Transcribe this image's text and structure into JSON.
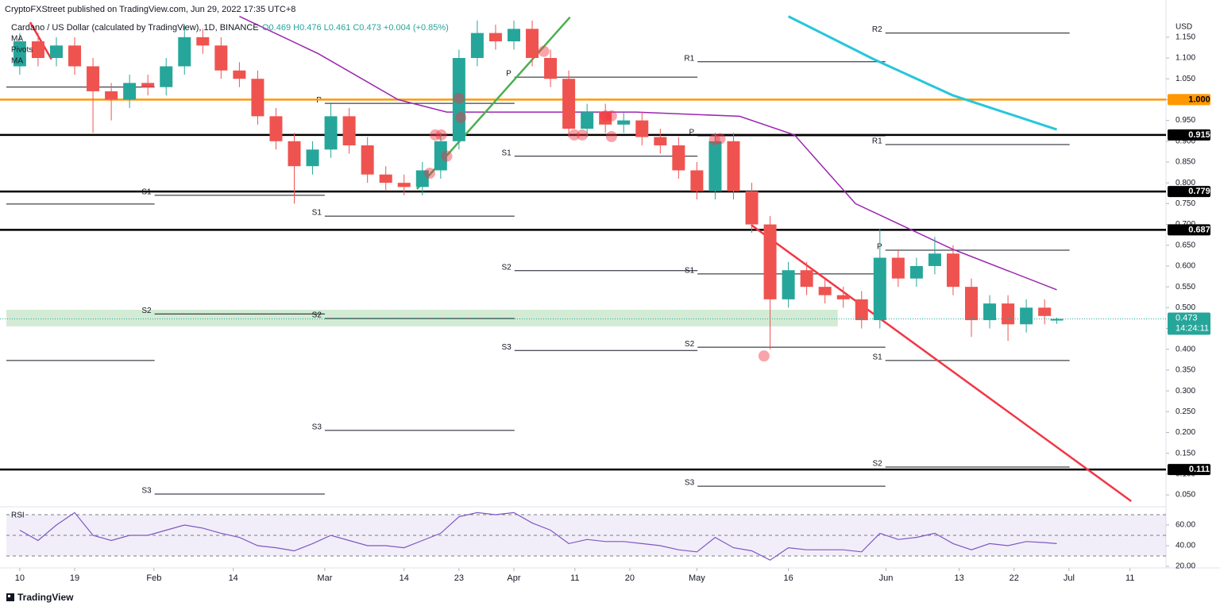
{
  "header": {
    "publisher": "CryptoFXStreet published on TradingView.com, Jun 29, 2022 17:35 UTC+8",
    "symbol": "Cardano / US Dollar (calculated by TradingView), 1D, BINANCE",
    "ohlc": "O0.469 H0.476 L0.461 C0.473 +0.004 (+0.85%)",
    "legend_pivots": "Pivots",
    "currency": "USD",
    "footer": "TradingView"
  },
  "chart_data": [
    {
      "type": "candlestick",
      "up_color": "#26a69a",
      "down_color": "#ef5350",
      "x": [
        0,
        3,
        6,
        9,
        12,
        15,
        18,
        21,
        24,
        27,
        30,
        33,
        36,
        39,
        42,
        45,
        48,
        51,
        54,
        57,
        60,
        63,
        66,
        69,
        72,
        75,
        78,
        81,
        84,
        87,
        90,
        93,
        96,
        99,
        102,
        105,
        108,
        111,
        114,
        117,
        120,
        123,
        126,
        129,
        132,
        135,
        138,
        141,
        144,
        147,
        150,
        153,
        156,
        159,
        162,
        165,
        168,
        170
      ],
      "open": [
        1.08,
        1.14,
        1.1,
        1.13,
        1.08,
        1.02,
        1.0,
        1.04,
        1.03,
        1.08,
        1.15,
        1.13,
        1.07,
        1.05,
        0.96,
        0.9,
        0.84,
        0.88,
        0.96,
        0.89,
        0.82,
        0.8,
        0.79,
        0.83,
        0.9,
        1.1,
        1.16,
        1.14,
        1.17,
        1.1,
        1.05,
        0.93,
        0.97,
        0.94,
        0.95,
        0.91,
        0.89,
        0.83,
        0.78,
        0.9,
        0.78,
        0.7,
        0.52,
        0.59,
        0.55,
        0.53,
        0.52,
        0.47,
        0.62,
        0.57,
        0.6,
        0.63,
        0.55,
        0.47,
        0.51,
        0.46,
        0.5,
        0.469
      ],
      "high": [
        1.16,
        1.16,
        1.15,
        1.15,
        1.1,
        1.04,
        1.06,
        1.06,
        1.1,
        1.18,
        1.17,
        1.15,
        1.09,
        1.07,
        0.98,
        0.92,
        0.9,
        0.99,
        0.98,
        0.91,
        0.84,
        0.82,
        0.85,
        0.92,
        1.12,
        1.19,
        1.18,
        1.19,
        1.19,
        1.12,
        1.07,
        0.99,
        0.99,
        0.97,
        0.97,
        0.93,
        0.91,
        0.85,
        0.92,
        0.92,
        0.8,
        0.72,
        0.61,
        0.61,
        0.57,
        0.55,
        0.54,
        0.69,
        0.64,
        0.62,
        0.67,
        0.65,
        0.57,
        0.53,
        0.53,
        0.52,
        0.52,
        0.476
      ],
      "low": [
        1.06,
        1.08,
        1.08,
        1.06,
        0.92,
        0.95,
        0.98,
        1.01,
        1.01,
        1.06,
        1.11,
        1.05,
        1.03,
        0.94,
        0.88,
        0.75,
        0.82,
        0.86,
        0.87,
        0.8,
        0.78,
        0.77,
        0.77,
        0.81,
        0.88,
        1.08,
        1.12,
        1.12,
        1.08,
        1.03,
        0.91,
        0.91,
        0.92,
        0.92,
        0.89,
        0.87,
        0.81,
        0.76,
        0.76,
        0.76,
        0.68,
        0.4,
        0.5,
        0.53,
        0.51,
        0.5,
        0.45,
        0.45,
        0.55,
        0.55,
        0.58,
        0.53,
        0.43,
        0.45,
        0.42,
        0.44,
        0.46,
        0.461
      ],
      "close": [
        1.14,
        1.1,
        1.13,
        1.08,
        1.02,
        1.0,
        1.04,
        1.03,
        1.08,
        1.15,
        1.13,
        1.07,
        1.05,
        0.96,
        0.9,
        0.84,
        0.88,
        0.96,
        0.89,
        0.82,
        0.8,
        0.79,
        0.83,
        0.9,
        1.1,
        1.16,
        1.14,
        1.17,
        1.1,
        1.05,
        0.93,
        0.97,
        0.94,
        0.95,
        0.91,
        0.89,
        0.83,
        0.78,
        0.9,
        0.78,
        0.7,
        0.52,
        0.59,
        0.55,
        0.53,
        0.52,
        0.47,
        0.62,
        0.57,
        0.6,
        0.63,
        0.55,
        0.47,
        0.51,
        0.46,
        0.5,
        0.48,
        0.473
      ],
      "series": [
        {
          "name": "MA",
          "color": "#9c27b0",
          "x": [
            36,
            49,
            62,
            70,
            82,
            101,
            118,
            127,
            137,
            153,
            170
          ],
          "values": [
            1.2,
            1.11,
            1.0,
            0.97,
            0.97,
            0.97,
            0.96,
            0.915,
            0.75,
            0.64,
            0.543
          ]
        },
        {
          "name": "MA",
          "color": "#26c6da",
          "x": [
            126,
            140,
            153,
            170
          ],
          "values": [
            1.2,
            1.097,
            1.01,
            0.928
          ]
        }
      ],
      "xlim": [
        -2.2,
        187.9
      ],
      "xticks": [
        {
          "value": 0,
          "label": "10"
        },
        {
          "value": 9,
          "label": "19"
        },
        {
          "value": 22,
          "label": "Feb"
        },
        {
          "value": 35,
          "label": "14"
        },
        {
          "value": 50,
          "label": "Mar"
        },
        {
          "value": 63,
          "label": "14"
        },
        {
          "value": 72,
          "label": "23"
        },
        {
          "value": 81,
          "label": "Apr"
        },
        {
          "value": 91,
          "label": "11"
        },
        {
          "value": 100,
          "label": "20"
        },
        {
          "value": 111,
          "label": "May"
        },
        {
          "value": 126,
          "label": "16"
        },
        {
          "value": 142,
          "label": "Jun"
        },
        {
          "value": 154,
          "label": "13"
        },
        {
          "value": 163,
          "label": "22"
        },
        {
          "value": 172,
          "label": "Jul"
        },
        {
          "value": 182,
          "label": "11"
        }
      ],
      "ylim": [
        0.033,
        1.205
      ],
      "yticks": [
        {
          "value": 1.15,
          "label": "1.150"
        },
        {
          "value": 1.1,
          "label": "1.100"
        },
        {
          "value": 1.05,
          "label": "1.050"
        },
        {
          "value": 1.0,
          "label": "1.000"
        },
        {
          "value": 0.95,
          "label": "0.950"
        },
        {
          "value": 0.9,
          "label": "0.900"
        },
        {
          "value": 0.85,
          "label": "0.850"
        },
        {
          "value": 0.8,
          "label": "0.800"
        },
        {
          "value": 0.75,
          "label": "0.750"
        },
        {
          "value": 0.7,
          "label": "0.700"
        },
        {
          "value": 0.65,
          "label": "0.650"
        },
        {
          "value": 0.6,
          "label": "0.600"
        },
        {
          "value": 0.55,
          "label": "0.550"
        },
        {
          "value": 0.5,
          "label": "0.500"
        },
        {
          "value": 0.45,
          "label": "0.450"
        },
        {
          "value": 0.4,
          "label": "0.400"
        },
        {
          "value": 0.35,
          "label": "0.350"
        },
        {
          "value": 0.3,
          "label": "0.300"
        },
        {
          "value": 0.25,
          "label": "0.250"
        },
        {
          "value": 0.2,
          "label": "0.200"
        },
        {
          "value": 0.15,
          "label": "0.150"
        },
        {
          "value": 0.1,
          "label": "0.100"
        },
        {
          "value": 0.05,
          "label": "0.050"
        }
      ],
      "levels": [
        {
          "value": 1.0,
          "label": "1.000",
          "color": "#ff9800"
        },
        {
          "value": 0.915,
          "label": "0.915",
          "color": "#000000"
        },
        {
          "value": 0.779,
          "label": "0.779",
          "color": "#000000"
        },
        {
          "value": 0.687,
          "label": "0.687",
          "color": "#000000"
        },
        {
          "value": 0.111,
          "label": "0.111",
          "color": "#000000"
        }
      ],
      "pivots": [
        {
          "label": null,
          "value": 1.03,
          "from": -2.2,
          "to": 22.1
        },
        {
          "label": null,
          "value": 0.749,
          "from": -2.2,
          "to": 22.1
        },
        {
          "label": null,
          "value": 0.373,
          "from": -2.2,
          "to": 22.1
        },
        {
          "label": "S1",
          "value": 0.77,
          "from": 22.1,
          "to": 50
        },
        {
          "label": "S2",
          "value": 0.485,
          "from": 22.1,
          "to": 50
        },
        {
          "label": "S3",
          "value": 0.052,
          "from": 22.1,
          "to": 50
        },
        {
          "label": "P",
          "value": 0.991,
          "from": 50,
          "to": 81.1
        },
        {
          "label": "S1",
          "value": 0.72,
          "from": 50,
          "to": 81.1
        },
        {
          "label": "S2",
          "value": 0.474,
          "from": 50,
          "to": 81.1
        },
        {
          "label": "S3",
          "value": 0.205,
          "from": 50,
          "to": 81.1
        },
        {
          "label": "P",
          "value": 1.054,
          "from": 81.1,
          "to": 111.1
        },
        {
          "label": "S1",
          "value": 0.864,
          "from": 81.1,
          "to": 111.1
        },
        {
          "label": "S2",
          "value": 0.589,
          "from": 81.1,
          "to": 111.1
        },
        {
          "label": "S3",
          "value": 0.397,
          "from": 81.1,
          "to": 111.1
        },
        {
          "label": "R1",
          "value": 1.091,
          "from": 111.1,
          "to": 141.9
        },
        {
          "label": "P",
          "value": 0.913,
          "from": 111.1,
          "to": 141.9
        },
        {
          "label": "S1",
          "value": 0.581,
          "from": 111.1,
          "to": 141.9
        },
        {
          "label": "S2",
          "value": 0.405,
          "from": 111.1,
          "to": 141.9
        },
        {
          "label": "S3",
          "value": 0.071,
          "from": 111.1,
          "to": 141.9
        },
        {
          "label": "R2",
          "value": 1.16,
          "from": 141.9,
          "to": 172.1
        },
        {
          "label": "R1",
          "value": 0.892,
          "from": 141.9,
          "to": 172.1
        },
        {
          "label": "P",
          "value": 0.638,
          "from": 141.9,
          "to": 172.1
        },
        {
          "label": "S1",
          "value": 0.373,
          "from": 141.9,
          "to": 172.1
        },
        {
          "label": "S2",
          "value": 0.117,
          "from": 141.9,
          "to": 172.1
        }
      ],
      "trendlines": [
        {
          "color": "#f23645",
          "x": [
            119.9,
            182.2
          ],
          "values": [
            0.699,
            0.035
          ]
        },
        {
          "color": "#4caf50",
          "x": [
            65.1,
            90.2
          ],
          "values": [
            0.785,
            1.198
          ]
        },
        {
          "color": "#f23645",
          "x": [
            1.7,
            5.2
          ],
          "values": [
            1.186,
            1.097
          ]
        }
      ],
      "zone": {
        "color": "#c8e6c9",
        "from": -2.2,
        "to": 134.1,
        "values": [
          0.455,
          0.495
        ]
      },
      "highlights": {
        "x": [
          67.2,
          70,
          68.1,
          69.1,
          72,
          72.3,
          85.9,
          90.9,
          92.2,
          96,
          97,
          97,
          113.9,
          114.8,
          122
        ],
        "values": [
          0.823,
          0.864,
          0.915,
          0.915,
          1.003,
          0.957,
          1.116,
          0.915,
          0.915,
          0.961,
          0.961,
          0.911,
          0.904,
          0.906,
          0.384
        ]
      },
      "last_price": {
        "value": 0.473,
        "label": "0.473",
        "countdown": "14:24:11",
        "color": "#26a69a"
      }
    },
    {
      "type": "line",
      "title": "RSI",
      "color": "#7e57c2",
      "x": [
        0,
        3,
        6,
        9,
        12,
        15,
        18,
        21,
        24,
        27,
        30,
        33,
        36,
        39,
        42,
        45,
        48,
        51,
        54,
        57,
        60,
        63,
        66,
        69,
        72,
        75,
        78,
        81,
        84,
        87,
        90,
        93,
        96,
        99,
        102,
        105,
        108,
        111,
        114,
        117,
        120,
        123,
        126,
        129,
        132,
        135,
        138,
        141,
        144,
        147,
        150,
        153,
        156,
        159,
        162,
        165,
        168,
        170
      ],
      "values": [
        55,
        45,
        60,
        72,
        50,
        45,
        50,
        50,
        55,
        60,
        57,
        52,
        48,
        40,
        38,
        35,
        42,
        50,
        45,
        40,
        40,
        38,
        45,
        52,
        68,
        72,
        70,
        72,
        62,
        55,
        42,
        46,
        44,
        44,
        42,
        40,
        36,
        34,
        48,
        38,
        35,
        26,
        38,
        36,
        36,
        36,
        34,
        52,
        46,
        48,
        52,
        42,
        36,
        42,
        40,
        44,
        43,
        42
      ],
      "xlim": [
        -2.2,
        187.9
      ],
      "ylim": [
        18.5,
        72.3
      ],
      "yticks": [
        {
          "value": 60,
          "label": "60.00"
        },
        {
          "value": 40,
          "label": "40.00"
        },
        {
          "value": 20,
          "label": "20.00"
        }
      ],
      "levels": [
        70,
        50,
        30
      ]
    }
  ]
}
